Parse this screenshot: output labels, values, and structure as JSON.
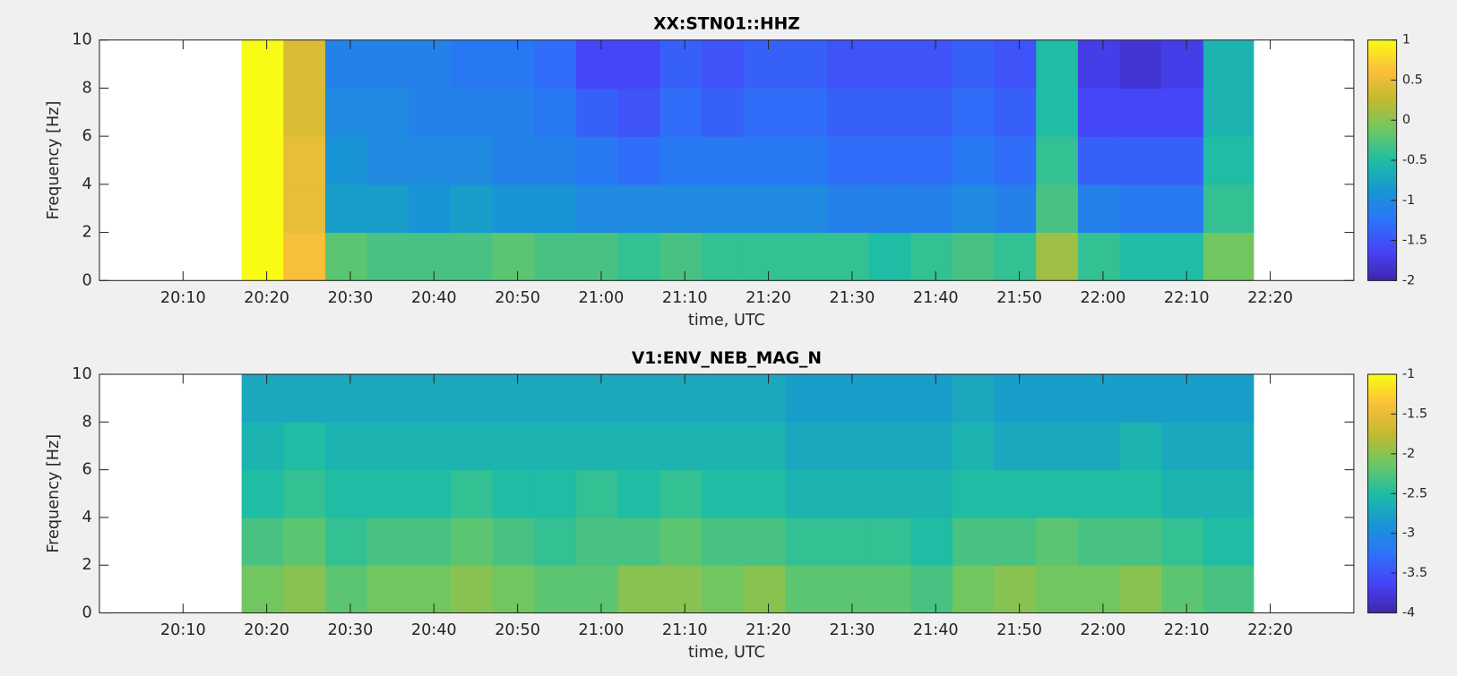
{
  "chart_data": [
    {
      "type": "heatmap",
      "title": "XX:STN01::HHZ",
      "x_label": "time, UTC",
      "y_label": "Frequency [Hz]",
      "colormap": "parula",
      "x": [
        1217,
        1222,
        1227,
        1232,
        1237,
        1242,
        1247,
        1252,
        1257,
        1262,
        1267,
        1272,
        1277,
        1282,
        1287,
        1292,
        1297,
        1302,
        1307,
        1312,
        1317,
        1322,
        1327,
        1332,
        1338
      ],
      "y": [
        0,
        2,
        4,
        6,
        8,
        10
      ],
      "values": [
        [
          1,
          0.6,
          -0.2,
          -0.3,
          -0.3,
          -0.3,
          -0.2,
          -0.3,
          -0.3,
          -0.4,
          -0.3,
          -0.4,
          -0.4,
          -0.4,
          -0.4,
          -0.5,
          -0.4,
          -0.3,
          -0.4,
          0.1,
          -0.4,
          -0.5,
          -0.5,
          -0.1
        ],
        [
          1,
          0.5,
          -0.8,
          -0.8,
          -0.9,
          -0.8,
          -0.9,
          -0.9,
          -1.0,
          -1.0,
          -1.0,
          -1.0,
          -1.0,
          -1.0,
          -1.1,
          -1.1,
          -1.1,
          -1.0,
          -1.1,
          -0.3,
          -1.1,
          -1.2,
          -1.2,
          -0.4
        ],
        [
          1,
          0.5,
          -0.9,
          -1.0,
          -1.0,
          -1.0,
          -1.1,
          -1.1,
          -1.2,
          -1.3,
          -1.2,
          -1.2,
          -1.2,
          -1.2,
          -1.3,
          -1.3,
          -1.3,
          -1.2,
          -1.3,
          -0.4,
          -1.4,
          -1.4,
          -1.4,
          -0.5
        ],
        [
          1,
          0.4,
          -1.0,
          -1.0,
          -1.1,
          -1.1,
          -1.1,
          -1.2,
          -1.4,
          -1.5,
          -1.3,
          -1.4,
          -1.3,
          -1.3,
          -1.4,
          -1.4,
          -1.4,
          -1.3,
          -1.4,
          -0.5,
          -1.6,
          -1.6,
          -1.6,
          -0.6
        ],
        [
          1,
          0.4,
          -1.1,
          -1.1,
          -1.1,
          -1.2,
          -1.2,
          -1.3,
          -1.6,
          -1.6,
          -1.4,
          -1.5,
          -1.4,
          -1.4,
          -1.5,
          -1.5,
          -1.5,
          -1.4,
          -1.5,
          -0.5,
          -1.7,
          -1.8,
          -1.7,
          -0.6
        ]
      ],
      "xlim": [
        1200,
        1350
      ],
      "ylim": [
        0,
        10
      ],
      "clim": [
        -2,
        1
      ],
      "xticks": [
        {
          "value": 1210,
          "label": "20:10"
        },
        {
          "value": 1220,
          "label": "20:20"
        },
        {
          "value": 1230,
          "label": "20:30"
        },
        {
          "value": 1240,
          "label": "20:40"
        },
        {
          "value": 1250,
          "label": "20:50"
        },
        {
          "value": 1260,
          "label": "21:00"
        },
        {
          "value": 1270,
          "label": "21:10"
        },
        {
          "value": 1280,
          "label": "21:20"
        },
        {
          "value": 1290,
          "label": "21:30"
        },
        {
          "value": 1300,
          "label": "21:40"
        },
        {
          "value": 1310,
          "label": "21:50"
        },
        {
          "value": 1320,
          "label": "22:00"
        },
        {
          "value": 1330,
          "label": "22:10"
        },
        {
          "value": 1340,
          "label": "22:20"
        }
      ],
      "yticks": [
        0,
        2,
        4,
        6,
        8,
        10
      ],
      "cticks": [
        1,
        0.5,
        0,
        -0.5,
        -1,
        -1.5,
        -2
      ]
    },
    {
      "type": "heatmap",
      "title": "V1:ENV_NEB_MAG_N",
      "x_label": "time, UTC",
      "y_label": "Frequency [Hz]",
      "colormap": "parula",
      "x": [
        1217,
        1222,
        1227,
        1232,
        1237,
        1242,
        1247,
        1252,
        1257,
        1262,
        1267,
        1272,
        1277,
        1282,
        1287,
        1292,
        1297,
        1302,
        1307,
        1312,
        1317,
        1322,
        1327,
        1332,
        1338
      ],
      "y": [
        0,
        2,
        4,
        6,
        8,
        10
      ],
      "values": [
        [
          -2.1,
          -2.0,
          -2.2,
          -2.1,
          -2.1,
          -2.0,
          -2.1,
          -2.2,
          -2.2,
          -2.0,
          -2.0,
          -2.1,
          -2.0,
          -2.2,
          -2.2,
          -2.2,
          -2.3,
          -2.1,
          -2.0,
          -2.1,
          -2.1,
          -2.0,
          -2.2,
          -2.3
        ],
        [
          -2.3,
          -2.2,
          -2.4,
          -2.3,
          -2.3,
          -2.2,
          -2.3,
          -2.4,
          -2.3,
          -2.3,
          -2.2,
          -2.3,
          -2.3,
          -2.4,
          -2.4,
          -2.4,
          -2.5,
          -2.3,
          -2.3,
          -2.2,
          -2.3,
          -2.3,
          -2.4,
          -2.5
        ],
        [
          -2.5,
          -2.4,
          -2.5,
          -2.5,
          -2.5,
          -2.4,
          -2.5,
          -2.5,
          -2.4,
          -2.5,
          -2.4,
          -2.5,
          -2.5,
          -2.6,
          -2.6,
          -2.6,
          -2.6,
          -2.5,
          -2.5,
          -2.5,
          -2.5,
          -2.5,
          -2.6,
          -2.6
        ],
        [
          -2.6,
          -2.5,
          -2.6,
          -2.6,
          -2.6,
          -2.6,
          -2.6,
          -2.6,
          -2.6,
          -2.6,
          -2.6,
          -2.6,
          -2.6,
          -2.7,
          -2.7,
          -2.7,
          -2.7,
          -2.6,
          -2.7,
          -2.7,
          -2.7,
          -2.6,
          -2.7,
          -2.7
        ],
        [
          -2.7,
          -2.7,
          -2.7,
          -2.7,
          -2.7,
          -2.7,
          -2.7,
          -2.7,
          -2.7,
          -2.7,
          -2.7,
          -2.7,
          -2.7,
          -2.8,
          -2.8,
          -2.8,
          -2.8,
          -2.7,
          -2.8,
          -2.8,
          -2.8,
          -2.8,
          -2.8,
          -2.8
        ]
      ],
      "xlim": [
        1200,
        1350
      ],
      "ylim": [
        0,
        10
      ],
      "clim": [
        -4,
        -1
      ],
      "xticks": [
        {
          "value": 1210,
          "label": "20:10"
        },
        {
          "value": 1220,
          "label": "20:20"
        },
        {
          "value": 1230,
          "label": "20:30"
        },
        {
          "value": 1240,
          "label": "20:40"
        },
        {
          "value": 1250,
          "label": "20:50"
        },
        {
          "value": 1260,
          "label": "21:00"
        },
        {
          "value": 1270,
          "label": "21:10"
        },
        {
          "value": 1280,
          "label": "21:20"
        },
        {
          "value": 1290,
          "label": "21:30"
        },
        {
          "value": 1300,
          "label": "21:40"
        },
        {
          "value": 1310,
          "label": "21:50"
        },
        {
          "value": 1320,
          "label": "22:00"
        },
        {
          "value": 1330,
          "label": "22:10"
        },
        {
          "value": 1340,
          "label": "22:20"
        }
      ],
      "yticks": [
        0,
        2,
        4,
        6,
        8,
        10
      ],
      "cticks": [
        -1,
        -1.5,
        -2,
        -2.5,
        -3,
        -3.5,
        -4
      ]
    }
  ]
}
